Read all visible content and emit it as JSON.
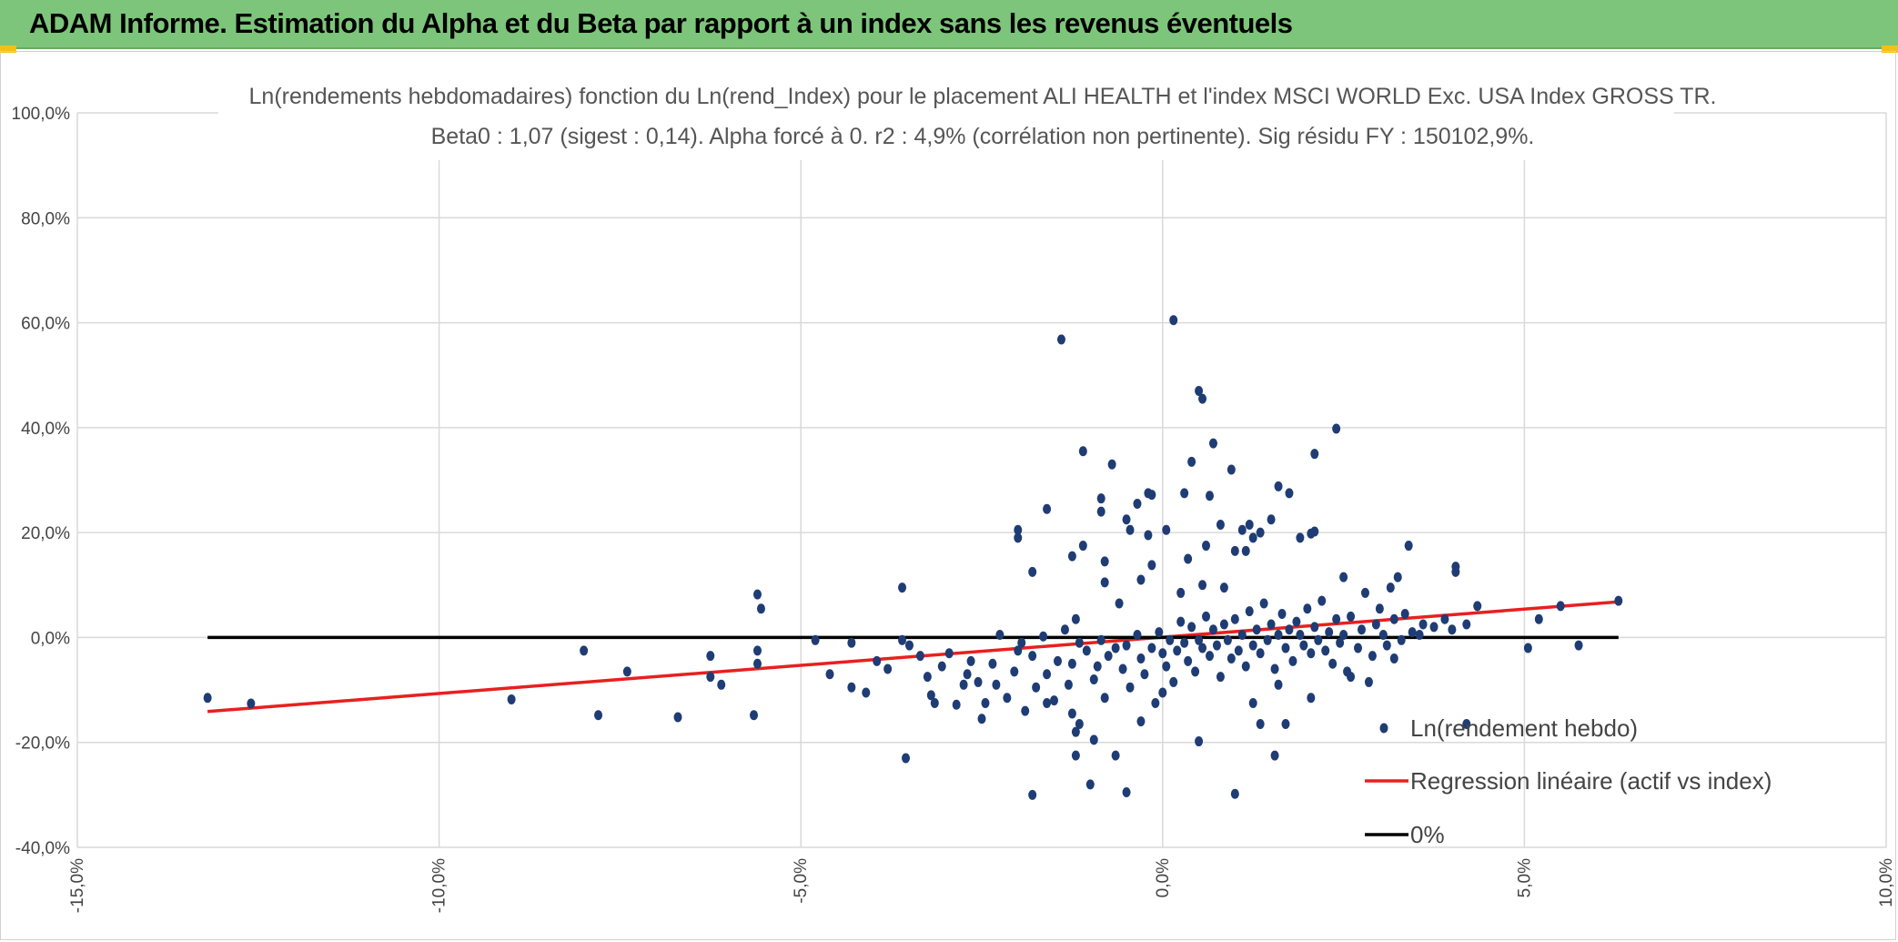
{
  "header": {
    "title": "ADAM Informe. Estimation du Alpha et du Beta par rapport à un index sans les revenus éventuels"
  },
  "chart_data": {
    "type": "scatter",
    "title": "Ln(rendements hebdomadaires) fonction du Ln(rend_Index) pour le placement ALI HEALTH et l'index MSCI WORLD Exc. USA Index GROSS TR.",
    "subtitle": "Beta0 : 1,07 (sigest : 0,14). Alpha forcé à 0. r2 : 4,9% (corrélation non pertinente). Sig résidu FY : 150102,9%.",
    "xlabel": "",
    "ylabel": "",
    "xlim": [
      -15,
      10
    ],
    "ylim": [
      -40,
      100
    ],
    "x_ticks": [
      -15,
      -10,
      -5,
      0,
      5,
      10
    ],
    "y_ticks": [
      -40,
      -20,
      0,
      20,
      40,
      60,
      80,
      100
    ],
    "x_tick_labels": [
      "-15,0%",
      "-10,0%",
      "-5,0%",
      "0,0%",
      "5,0%",
      "10,0%"
    ],
    "y_tick_labels": [
      "-40,0%",
      "-20,0%",
      "0,0%",
      "20,0%",
      "40,0%",
      "60,0%",
      "80,0%",
      "100,0%"
    ],
    "grid": true,
    "legend_position": "bottom-right",
    "series": [
      {
        "name": "Ln(rendement hebdo)",
        "kind": "scatter",
        "color": "#1f3c74",
        "points": [
          [
            -13.2,
            -11.5
          ],
          [
            -12.6,
            -12.6
          ],
          [
            -9.0,
            -11.8
          ],
          [
            -8.0,
            -2.5
          ],
          [
            -7.8,
            -14.8
          ],
          [
            -7.4,
            -6.5
          ],
          [
            -6.7,
            -15.2
          ],
          [
            -6.25,
            -3.5
          ],
          [
            -6.25,
            -7.5
          ],
          [
            -6.1,
            -9.0
          ],
          [
            -5.65,
            -14.8
          ],
          [
            -5.6,
            8.2
          ],
          [
            -5.55,
            5.5
          ],
          [
            -5.6,
            -2.5
          ],
          [
            -5.6,
            -5.0
          ],
          [
            -4.8,
            -0.5
          ],
          [
            -4.6,
            -7.0
          ],
          [
            -4.3,
            -1.0
          ],
          [
            -4.3,
            -9.5
          ],
          [
            -4.1,
            -10.5
          ],
          [
            -3.95,
            -4.5
          ],
          [
            -3.8,
            -6.0
          ],
          [
            -3.6,
            -0.5
          ],
          [
            -3.5,
            -1.5
          ],
          [
            -3.35,
            -3.5
          ],
          [
            -3.25,
            -7.5
          ],
          [
            -3.2,
            -11.0
          ],
          [
            -3.15,
            -12.5
          ],
          [
            -3.05,
            -5.5
          ],
          [
            -2.95,
            -3.0
          ],
          [
            -2.85,
            -12.8
          ],
          [
            -2.75,
            -9.0
          ],
          [
            -2.65,
            -4.5
          ],
          [
            -2.55,
            -8.5
          ],
          [
            -2.45,
            -12.5
          ],
          [
            -2.35,
            -5.0
          ],
          [
            -2.25,
            0.5
          ],
          [
            -2.15,
            -11.5
          ],
          [
            -2.05,
            -6.5
          ],
          [
            -1.95,
            -1.0
          ],
          [
            -1.9,
            -14.0
          ],
          [
            -1.8,
            -3.5
          ],
          [
            -1.75,
            -9.5
          ],
          [
            -1.65,
            0.2
          ],
          [
            -1.6,
            -7.0
          ],
          [
            -1.5,
            -12.0
          ],
          [
            -1.45,
            -4.5
          ],
          [
            -1.35,
            1.5
          ],
          [
            -1.3,
            -9.0
          ],
          [
            -1.25,
            -5.0
          ],
          [
            -1.15,
            -1.0
          ],
          [
            -1.05,
            -2.5
          ],
          [
            -0.95,
            -8.0
          ],
          [
            -0.9,
            -5.5
          ],
          [
            -0.85,
            -0.5
          ],
          [
            -0.8,
            -11.5
          ],
          [
            -0.75,
            -3.5
          ],
          [
            -0.65,
            -2.0
          ],
          [
            -0.55,
            -6.0
          ],
          [
            -0.5,
            -1.5
          ],
          [
            -0.45,
            -9.5
          ],
          [
            -0.35,
            0.5
          ],
          [
            -0.3,
            -4.0
          ],
          [
            -0.25,
            -7.0
          ],
          [
            -0.15,
            -2.0
          ],
          [
            -0.1,
            -12.5
          ],
          [
            -0.05,
            1.0
          ],
          [
            0.0,
            -3.0
          ],
          [
            0.05,
            -5.5
          ],
          [
            0.1,
            -0.5
          ],
          [
            0.15,
            -8.5
          ],
          [
            0.2,
            -2.5
          ],
          [
            0.25,
            3.0
          ],
          [
            0.3,
            -1.0
          ],
          [
            0.35,
            -4.5
          ],
          [
            0.4,
            2.0
          ],
          [
            0.45,
            -6.5
          ],
          [
            0.5,
            -0.5
          ],
          [
            0.55,
            -2.0
          ],
          [
            0.6,
            4.0
          ],
          [
            0.65,
            -3.5
          ],
          [
            0.7,
            1.5
          ],
          [
            0.75,
            -1.5
          ],
          [
            0.8,
            -7.5
          ],
          [
            0.85,
            2.5
          ],
          [
            0.9,
            -0.5
          ],
          [
            0.95,
            -4.0
          ],
          [
            1.0,
            3.5
          ],
          [
            1.05,
            -2.5
          ],
          [
            1.1,
            0.5
          ],
          [
            1.15,
            -5.5
          ],
          [
            1.2,
            5.0
          ],
          [
            1.25,
            -1.5
          ],
          [
            1.3,
            1.5
          ],
          [
            1.35,
            -3.0
          ],
          [
            1.4,
            6.5
          ],
          [
            1.45,
            -0.5
          ],
          [
            1.5,
            2.5
          ],
          [
            1.55,
            -6.0
          ],
          [
            1.6,
            0.5
          ],
          [
            1.65,
            4.5
          ],
          [
            1.7,
            -2.0
          ],
          [
            1.75,
            1.5
          ],
          [
            1.8,
            -4.5
          ],
          [
            1.85,
            3.0
          ],
          [
            1.9,
            0.5
          ],
          [
            1.95,
            -1.5
          ],
          [
            2.0,
            5.5
          ],
          [
            2.05,
            -3.0
          ],
          [
            2.1,
            2.0
          ],
          [
            2.15,
            -0.5
          ],
          [
            2.2,
            7.0
          ],
          [
            2.25,
            -2.5
          ],
          [
            2.3,
            1.0
          ],
          [
            2.35,
            -5.0
          ],
          [
            2.4,
            3.5
          ],
          [
            2.45,
            -1.0
          ],
          [
            2.5,
            0.5
          ],
          [
            2.55,
            -6.5
          ],
          [
            2.6,
            4.0
          ],
          [
            2.7,
            -2.0
          ],
          [
            2.75,
            1.5
          ],
          [
            2.8,
            8.5
          ],
          [
            2.85,
            -8.5
          ],
          [
            2.9,
            -3.5
          ],
          [
            2.95,
            2.5
          ],
          [
            3.0,
            5.5
          ],
          [
            3.05,
            0.5
          ],
          [
            3.1,
            -1.5
          ],
          [
            3.15,
            9.5
          ],
          [
            3.2,
            3.5
          ],
          [
            3.25,
            11.5
          ],
          [
            3.3,
            -0.5
          ],
          [
            3.35,
            4.5
          ],
          [
            3.4,
            17.5
          ],
          [
            3.45,
            1.0
          ],
          [
            3.55,
            0.5
          ],
          [
            3.6,
            2.5
          ],
          [
            3.75,
            2.0
          ],
          [
            3.9,
            3.5
          ],
          [
            4.0,
            1.5
          ],
          [
            4.05,
            12.5
          ],
          [
            4.05,
            13.5
          ],
          [
            4.2,
            2.5
          ],
          [
            4.35,
            6.0
          ],
          [
            4.2,
            -16.5
          ],
          [
            5.05,
            -2.0
          ],
          [
            5.2,
            3.5
          ],
          [
            5.5,
            6.0
          ],
          [
            5.75,
            -1.5
          ],
          [
            6.3,
            7.0
          ],
          [
            -1.4,
            56.8
          ],
          [
            0.15,
            60.5
          ],
          [
            0.5,
            47.0
          ],
          [
            0.55,
            45.5
          ],
          [
            0.95,
            32.0
          ],
          [
            0.4,
            33.5
          ],
          [
            0.7,
            37.0
          ],
          [
            2.4,
            39.8
          ],
          [
            -1.1,
            35.5
          ],
          [
            -0.7,
            33.0
          ],
          [
            2.1,
            35.0
          ],
          [
            1.6,
            28.8
          ],
          [
            1.75,
            27.5
          ],
          [
            -0.2,
            27.5
          ],
          [
            -0.15,
            27.2
          ],
          [
            0.3,
            27.5
          ],
          [
            0.65,
            27.0
          ],
          [
            -0.85,
            26.5
          ],
          [
            -0.35,
            25.5
          ],
          [
            -0.85,
            24.0
          ],
          [
            -1.6,
            24.5
          ],
          [
            -0.5,
            22.5
          ],
          [
            -2.0,
            20.5
          ],
          [
            -2.0,
            19.0
          ],
          [
            -0.45,
            20.5
          ],
          [
            0.05,
            20.5
          ],
          [
            -0.2,
            19.5
          ],
          [
            0.8,
            21.5
          ],
          [
            1.2,
            21.5
          ],
          [
            1.5,
            22.5
          ],
          [
            1.35,
            20.0
          ],
          [
            1.1,
            20.5
          ],
          [
            1.25,
            19.0
          ],
          [
            1.9,
            19.0
          ],
          [
            2.05,
            19.8
          ],
          [
            2.1,
            20.2
          ],
          [
            1.15,
            16.5
          ],
          [
            0.6,
            17.5
          ],
          [
            -1.1,
            17.5
          ],
          [
            -1.25,
            15.5
          ],
          [
            -0.8,
            14.5
          ],
          [
            -0.15,
            13.8
          ],
          [
            0.35,
            15.0
          ],
          [
            1.0,
            16.5
          ],
          [
            -1.8,
            12.5
          ],
          [
            -0.3,
            11.0
          ],
          [
            0.55,
            10.0
          ],
          [
            2.5,
            11.5
          ],
          [
            -1.6,
            -12.5
          ],
          [
            -1.15,
            -16.5
          ],
          [
            -1.2,
            -18.0
          ],
          [
            -1.25,
            -14.5
          ],
          [
            -0.95,
            -19.5
          ],
          [
            -1.2,
            -22.5
          ],
          [
            -0.65,
            -22.5
          ],
          [
            -1.0,
            -28.0
          ],
          [
            -0.5,
            -29.5
          ],
          [
            -1.8,
            -30.0
          ],
          [
            0.5,
            -19.8
          ],
          [
            1.0,
            -29.8
          ],
          [
            1.35,
            -16.5
          ],
          [
            1.55,
            -22.5
          ],
          [
            1.7,
            -16.5
          ],
          [
            -3.55,
            -23.0
          ],
          [
            -3.6,
            9.5
          ],
          [
            -2.5,
            -15.5
          ],
          [
            -2.7,
            -7.0
          ],
          [
            -2.0,
            -2.5
          ],
          [
            -1.2,
            3.5
          ],
          [
            -0.6,
            6.5
          ],
          [
            0.25,
            8.5
          ],
          [
            0.85,
            9.5
          ],
          [
            1.6,
            -9.0
          ],
          [
            2.05,
            -11.5
          ],
          [
            -0.8,
            10.5
          ],
          [
            0.0,
            -10.5
          ],
          [
            -2.3,
            -9.0
          ],
          [
            3.2,
            -4.0
          ],
          [
            2.6,
            -7.5
          ],
          [
            1.25,
            -12.5
          ],
          [
            -0.3,
            -16.0
          ]
        ]
      },
      {
        "name": "Regression linéaire (actif vs index)",
        "kind": "line",
        "color": "#e8201f",
        "points": [
          [
            -13.2,
            -14.1
          ],
          [
            6.3,
            6.8
          ]
        ]
      },
      {
        "name": "0%",
        "kind": "line",
        "color": "#000000",
        "points": [
          [
            -13.2,
            0
          ],
          [
            6.3,
            0
          ]
        ]
      }
    ]
  }
}
